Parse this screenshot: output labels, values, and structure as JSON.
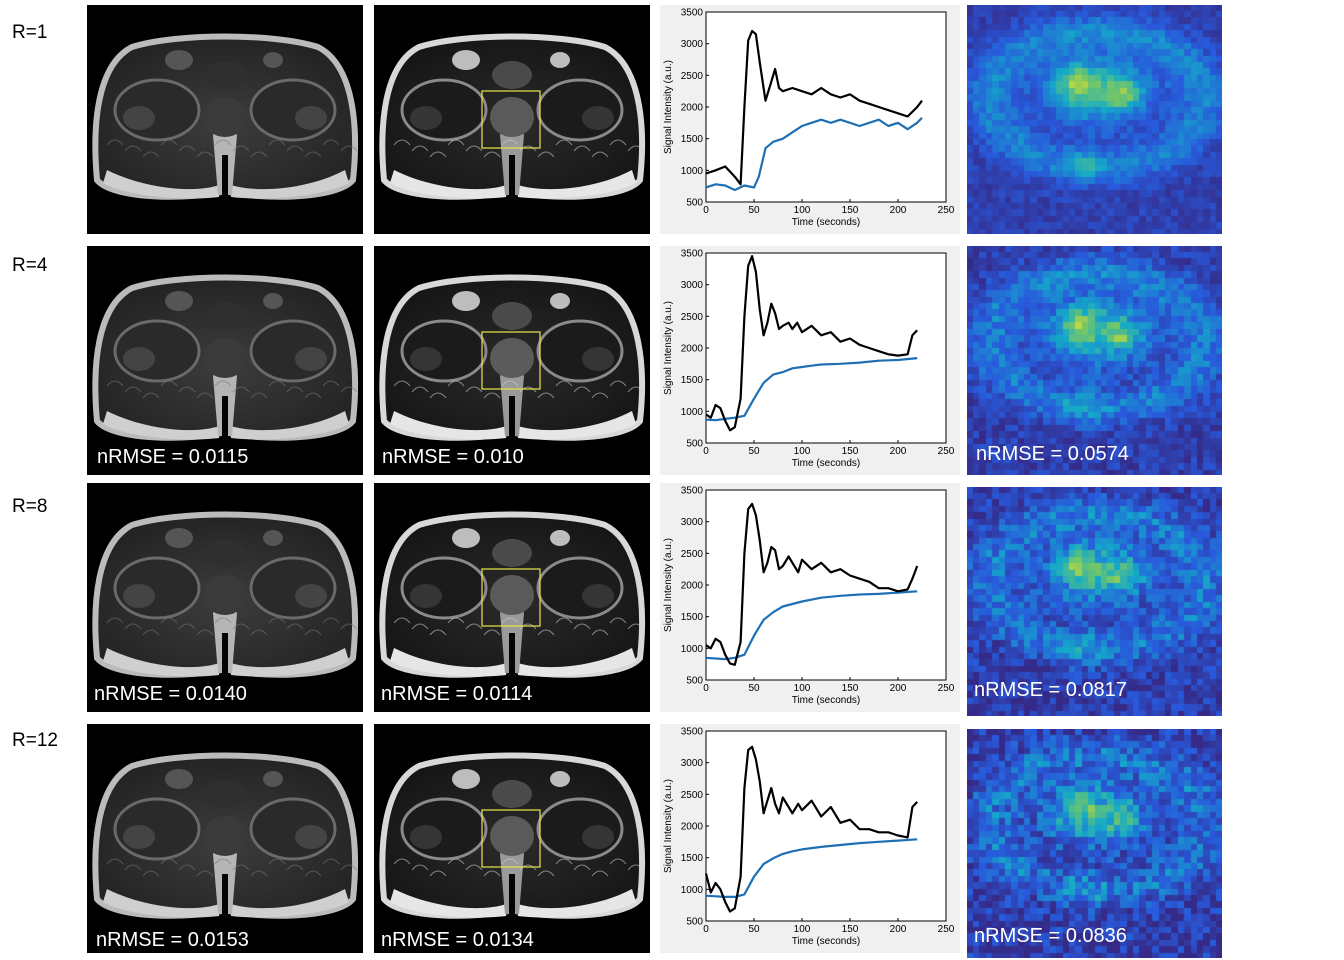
{
  "rows": [
    {
      "label": "R=1",
      "nrmse_original": "",
      "nrmse_enhanced": "",
      "nrmse_map": "",
      "plot": {
        "black_points": [
          [
            0,
            950
          ],
          [
            10,
            1000
          ],
          [
            20,
            1060
          ],
          [
            30,
            900
          ],
          [
            36,
            780
          ],
          [
            40,
            2000
          ],
          [
            44,
            3050
          ],
          [
            48,
            3200
          ],
          [
            52,
            3150
          ],
          [
            56,
            2700
          ],
          [
            62,
            2100
          ],
          [
            68,
            2400
          ],
          [
            72,
            2600
          ],
          [
            76,
            2300
          ],
          [
            80,
            2250
          ],
          [
            90,
            2300
          ],
          [
            100,
            2250
          ],
          [
            110,
            2200
          ],
          [
            120,
            2300
          ],
          [
            130,
            2200
          ],
          [
            140,
            2150
          ],
          [
            150,
            2200
          ],
          [
            160,
            2100
          ],
          [
            170,
            2050
          ],
          [
            180,
            2000
          ],
          [
            190,
            1950
          ],
          [
            200,
            1900
          ],
          [
            210,
            1850
          ],
          [
            220,
            2000
          ],
          [
            225,
            2100
          ]
        ],
        "blue_points": [
          [
            0,
            730
          ],
          [
            10,
            780
          ],
          [
            20,
            760
          ],
          [
            30,
            690
          ],
          [
            40,
            760
          ],
          [
            50,
            730
          ],
          [
            55,
            900
          ],
          [
            62,
            1350
          ],
          [
            70,
            1450
          ],
          [
            80,
            1500
          ],
          [
            90,
            1600
          ],
          [
            100,
            1700
          ],
          [
            110,
            1750
          ],
          [
            120,
            1800
          ],
          [
            130,
            1750
          ],
          [
            140,
            1800
          ],
          [
            150,
            1750
          ],
          [
            160,
            1700
          ],
          [
            170,
            1750
          ],
          [
            180,
            1800
          ],
          [
            190,
            1700
          ],
          [
            200,
            1750
          ],
          [
            210,
            1650
          ],
          [
            220,
            1750
          ],
          [
            225,
            1830
          ]
        ]
      },
      "map_seed": 1
    },
    {
      "label": "R=4",
      "nrmse_original": "nRMSE = 0.0115",
      "nrmse_enhanced": "nRMSE = 0.010",
      "nrmse_map": "nRMSE = 0.0574",
      "plot": {
        "black_points": [
          [
            0,
            950
          ],
          [
            5,
            900
          ],
          [
            10,
            1100
          ],
          [
            15,
            1050
          ],
          [
            20,
            850
          ],
          [
            25,
            700
          ],
          [
            30,
            750
          ],
          [
            36,
            1200
          ],
          [
            40,
            2500
          ],
          [
            44,
            3300
          ],
          [
            48,
            3450
          ],
          [
            52,
            3200
          ],
          [
            56,
            2600
          ],
          [
            60,
            2200
          ],
          [
            64,
            2400
          ],
          [
            68,
            2700
          ],
          [
            72,
            2550
          ],
          [
            76,
            2300
          ],
          [
            80,
            2350
          ],
          [
            86,
            2400
          ],
          [
            90,
            2300
          ],
          [
            95,
            2400
          ],
          [
            100,
            2250
          ],
          [
            110,
            2350
          ],
          [
            120,
            2200
          ],
          [
            130,
            2250
          ],
          [
            140,
            2100
          ],
          [
            150,
            2150
          ],
          [
            160,
            2050
          ],
          [
            170,
            2000
          ],
          [
            180,
            1950
          ],
          [
            190,
            1900
          ],
          [
            200,
            1880
          ],
          [
            210,
            1900
          ],
          [
            215,
            2200
          ],
          [
            220,
            2280
          ]
        ],
        "blue_points": [
          [
            0,
            870
          ],
          [
            10,
            860
          ],
          [
            20,
            880
          ],
          [
            30,
            900
          ],
          [
            40,
            930
          ],
          [
            50,
            1200
          ],
          [
            60,
            1450
          ],
          [
            70,
            1580
          ],
          [
            80,
            1620
          ],
          [
            90,
            1680
          ],
          [
            100,
            1700
          ],
          [
            110,
            1720
          ],
          [
            120,
            1740
          ],
          [
            140,
            1750
          ],
          [
            160,
            1770
          ],
          [
            180,
            1800
          ],
          [
            200,
            1810
          ],
          [
            220,
            1840
          ]
        ]
      },
      "map_seed": 4
    },
    {
      "label": "R=8",
      "nrmse_original": "nRMSE = 0.0140",
      "nrmse_enhanced": "nRMSE = 0.0114",
      "nrmse_map": "nRMSE = 0.0817",
      "plot": {
        "black_points": [
          [
            0,
            1050
          ],
          [
            5,
            1000
          ],
          [
            10,
            1150
          ],
          [
            15,
            1100
          ],
          [
            20,
            900
          ],
          [
            25,
            760
          ],
          [
            30,
            740
          ],
          [
            36,
            1100
          ],
          [
            40,
            2500
          ],
          [
            44,
            3200
          ],
          [
            48,
            3280
          ],
          [
            52,
            3100
          ],
          [
            56,
            2700
          ],
          [
            60,
            2200
          ],
          [
            64,
            2350
          ],
          [
            68,
            2600
          ],
          [
            72,
            2550
          ],
          [
            76,
            2250
          ],
          [
            80,
            2300
          ],
          [
            86,
            2450
          ],
          [
            90,
            2350
          ],
          [
            96,
            2200
          ],
          [
            100,
            2400
          ],
          [
            110,
            2250
          ],
          [
            120,
            2350
          ],
          [
            130,
            2200
          ],
          [
            140,
            2250
          ],
          [
            150,
            2150
          ],
          [
            160,
            2100
          ],
          [
            170,
            2050
          ],
          [
            180,
            1950
          ],
          [
            190,
            1950
          ],
          [
            200,
            1900
          ],
          [
            210,
            1930
          ],
          [
            215,
            2100
          ],
          [
            220,
            2300
          ]
        ],
        "blue_points": [
          [
            0,
            850
          ],
          [
            10,
            840
          ],
          [
            20,
            830
          ],
          [
            30,
            850
          ],
          [
            40,
            900
          ],
          [
            50,
            1200
          ],
          [
            60,
            1450
          ],
          [
            70,
            1570
          ],
          [
            80,
            1660
          ],
          [
            90,
            1700
          ],
          [
            100,
            1740
          ],
          [
            120,
            1800
          ],
          [
            140,
            1830
          ],
          [
            160,
            1850
          ],
          [
            180,
            1860
          ],
          [
            200,
            1880
          ],
          [
            220,
            1900
          ]
        ]
      },
      "map_seed": 8
    },
    {
      "label": "R=12",
      "nrmse_original": "nRMSE = 0.0153",
      "nrmse_enhanced": "nRMSE = 0.0134",
      "nrmse_map": "nRMSE = 0.0836",
      "plot": {
        "black_points": [
          [
            0,
            1250
          ],
          [
            5,
            950
          ],
          [
            10,
            1100
          ],
          [
            15,
            1000
          ],
          [
            20,
            800
          ],
          [
            25,
            650
          ],
          [
            30,
            700
          ],
          [
            36,
            1200
          ],
          [
            40,
            2600
          ],
          [
            44,
            3200
          ],
          [
            48,
            3250
          ],
          [
            52,
            3050
          ],
          [
            56,
            2700
          ],
          [
            60,
            2200
          ],
          [
            64,
            2400
          ],
          [
            68,
            2600
          ],
          [
            72,
            2350
          ],
          [
            76,
            2200
          ],
          [
            80,
            2450
          ],
          [
            86,
            2300
          ],
          [
            90,
            2200
          ],
          [
            96,
            2350
          ],
          [
            100,
            2250
          ],
          [
            110,
            2400
          ],
          [
            120,
            2150
          ],
          [
            130,
            2300
          ],
          [
            140,
            2050
          ],
          [
            150,
            2100
          ],
          [
            160,
            1950
          ],
          [
            170,
            1950
          ],
          [
            180,
            1900
          ],
          [
            190,
            1900
          ],
          [
            200,
            1850
          ],
          [
            210,
            1820
          ],
          [
            215,
            2300
          ],
          [
            220,
            2380
          ]
        ],
        "blue_points": [
          [
            0,
            900
          ],
          [
            10,
            890
          ],
          [
            20,
            880
          ],
          [
            30,
            880
          ],
          [
            40,
            920
          ],
          [
            50,
            1200
          ],
          [
            60,
            1400
          ],
          [
            70,
            1490
          ],
          [
            80,
            1560
          ],
          [
            90,
            1600
          ],
          [
            100,
            1630
          ],
          [
            120,
            1670
          ],
          [
            140,
            1700
          ],
          [
            160,
            1730
          ],
          [
            180,
            1750
          ],
          [
            200,
            1770
          ],
          [
            220,
            1790
          ]
        ]
      },
      "map_seed": 12
    }
  ],
  "chart_data": {
    "type": "line",
    "xlabel": "Time (seconds)",
    "ylabel": "Signal Intensity (a.u.)",
    "xlim": [
      0,
      250
    ],
    "ylim": [
      500,
      3500
    ],
    "xticks": [
      0,
      50,
      100,
      150,
      200,
      250
    ],
    "yticks": [
      500,
      1000,
      1500,
      2000,
      2500,
      3000,
      3500
    ],
    "series": [
      {
        "name": "black curve",
        "color": "#000000"
      },
      {
        "name": "blue curve",
        "color": "#1f6fb5"
      }
    ]
  },
  "colors": {
    "roi_box": "#e8e84a",
    "heat_low": "#3a3ea8",
    "heat_high": "#f5e52a"
  }
}
